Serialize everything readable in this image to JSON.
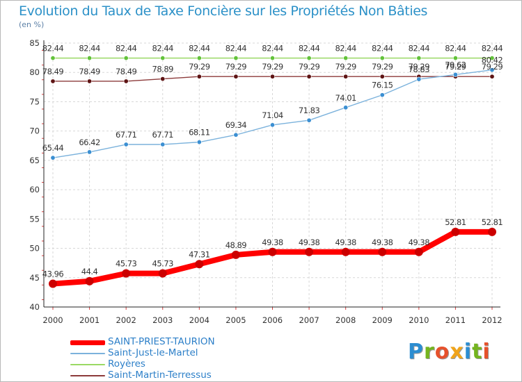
{
  "title": "Evolution du Taux de Taxe Foncière sur les Propriétés Non Bâties",
  "subtitle": "(en %)",
  "logo": "Proxiti",
  "chart_data": {
    "type": "line",
    "x": [
      "2000",
      "2001",
      "2002",
      "2003",
      "2004",
      "2005",
      "2006",
      "2007",
      "2008",
      "2009",
      "2010",
      "2011",
      "2012"
    ],
    "ylim": [
      40,
      85
    ],
    "yticks": [
      40,
      45,
      50,
      55,
      60,
      65,
      70,
      75,
      80,
      85
    ],
    "grid": true,
    "legend_position": "bottom",
    "series": [
      {
        "name": "SAINT-PRIEST-TAURION",
        "color": "#ff0000",
        "marker_color": "#cc0000",
        "values": [
          43.96,
          44.4,
          45.73,
          45.73,
          47.31,
          48.89,
          49.38,
          49.38,
          49.38,
          49.38,
          49.38,
          52.81,
          52.81
        ],
        "labels": [
          "43.96",
          "44.4",
          "45.73",
          "45.73",
          "47.31",
          "48.89",
          "49.38",
          "49.38",
          "49.38",
          "49.38",
          "49.38",
          "52.81",
          "52.81"
        ]
      },
      {
        "name": "Saint-Just-le-Martel",
        "color": "#7bb2dc",
        "marker_color": "#3b8fd2",
        "values": [
          65.44,
          66.42,
          67.71,
          67.71,
          68.11,
          69.34,
          71.04,
          71.83,
          74.01,
          76.15,
          78.83,
          79.62,
          80.42
        ],
        "labels": [
          "65.44",
          "66.42",
          "67.71",
          "67.71",
          "68.11",
          "69.34",
          "71.04",
          "71.83",
          "74.01",
          "76.15",
          "78.83",
          "79.62",
          "80.42"
        ]
      },
      {
        "name": "Royères",
        "color": "#9ad964",
        "marker_color": "#62c23a",
        "values": [
          82.44,
          82.44,
          82.44,
          82.44,
          82.44,
          82.44,
          82.44,
          82.44,
          82.44,
          82.44,
          82.44,
          82.44,
          82.44
        ],
        "labels": [
          "82.44",
          "82.44",
          "82.44",
          "82.44",
          "82.44",
          "82.44",
          "82.44",
          "82.44",
          "82.44",
          "82.44",
          "82.44",
          "82.44",
          "82.44"
        ]
      },
      {
        "name": "Saint-Martin-Terressus",
        "color": "#8c3a3a",
        "marker_color": "#5e1414",
        "values": [
          78.49,
          78.49,
          78.49,
          78.89,
          79.29,
          79.29,
          79.29,
          79.29,
          79.29,
          79.29,
          79.29,
          79.29,
          79.29
        ],
        "labels": [
          "78.49",
          "78.49",
          "78.49",
          "78.89",
          "79.29",
          "79.29",
          "79.29",
          "79.29",
          "79.29",
          "79.29",
          "79.29",
          "79.29",
          "79.29"
        ]
      }
    ]
  }
}
